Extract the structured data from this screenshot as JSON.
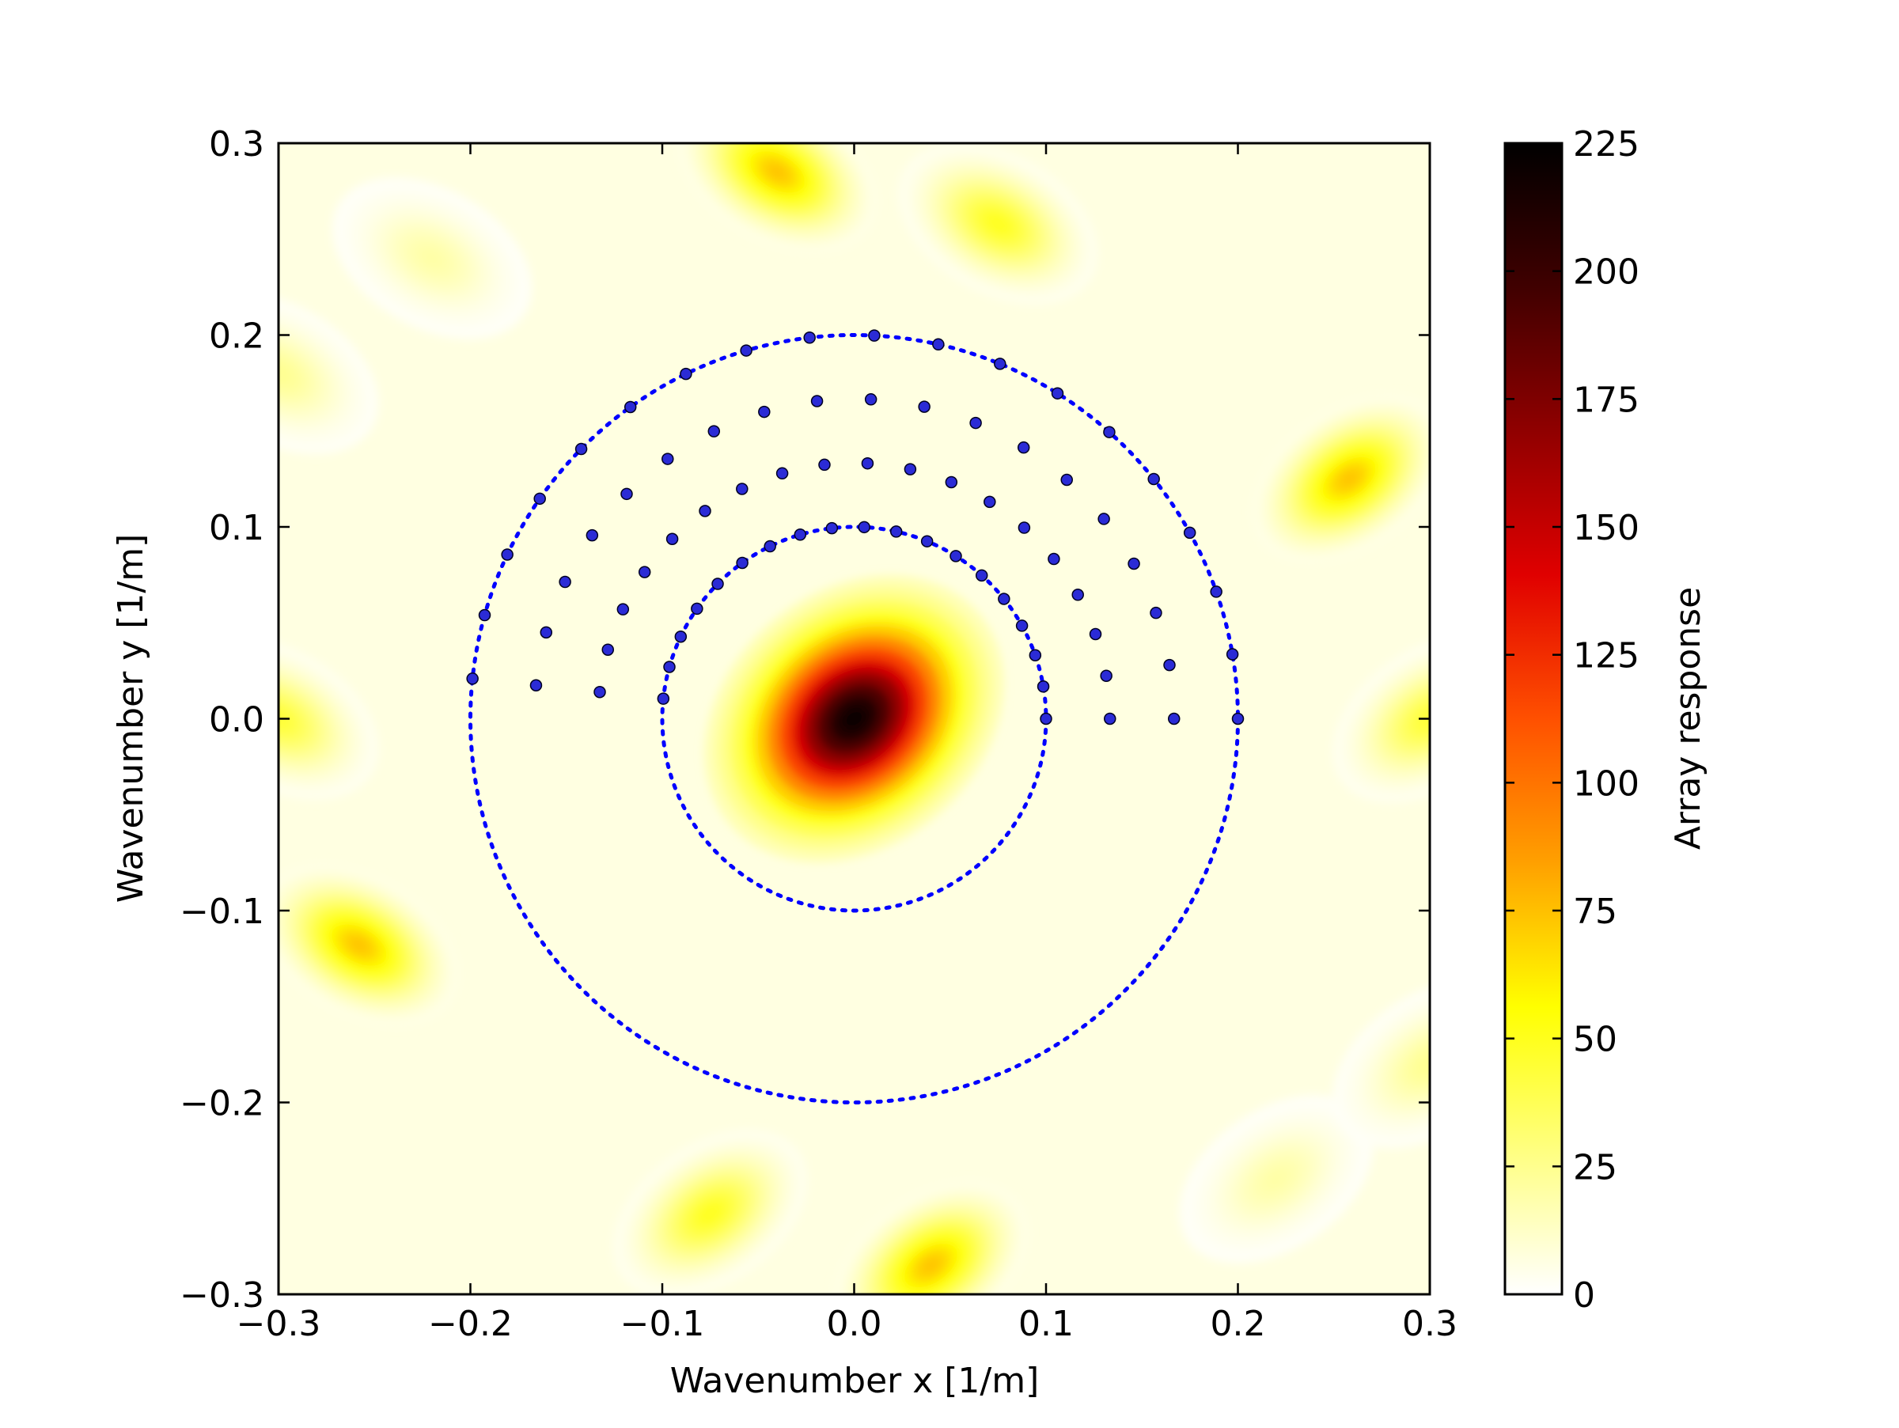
{
  "chart_data": {
    "type": "heatmap",
    "title": "",
    "xlabel": "Wavenumber x [1/m]",
    "ylabel": "Wavenumber y [1/m]",
    "xlim": [
      -0.3,
      0.3
    ],
    "ylim": [
      -0.3,
      0.3
    ],
    "x_ticks": [
      -0.3,
      -0.2,
      -0.1,
      0.0,
      0.1,
      0.2,
      0.3
    ],
    "x_tick_labels": [
      "−0.3",
      "−0.2",
      "−0.1",
      "0.0",
      "0.1",
      "0.2",
      "0.3"
    ],
    "y_ticks": [
      0.3,
      0.2,
      0.1,
      0.0,
      -0.1,
      -0.2,
      -0.3
    ],
    "y_tick_labels": [
      "0.3",
      "0.2",
      "0.1",
      "0.0",
      "−0.1",
      "−0.2",
      "−0.3"
    ],
    "grid": false,
    "colormap": "hot_r",
    "colorbar": {
      "label": "Array response",
      "range": [
        0,
        225
      ],
      "ticks": [
        225,
        200,
        175,
        150,
        125,
        100,
        75,
        50,
        25,
        0
      ],
      "tick_labels": [
        "225",
        "200",
        "175",
        "150",
        "125",
        "100",
        "75",
        "50",
        "25",
        "0"
      ],
      "stops": [
        "#ffffff",
        "#ffff80",
        "#ffff00",
        "#ffa000",
        "#ff5000",
        "#e00000",
        "#900000",
        "#400000",
        "#000000"
      ]
    },
    "response_peaks": [
      {
        "x": 0.0,
        "y": 0.0,
        "value": 225
      },
      {
        "x": -0.04,
        "y": 0.285,
        "value": 75
      },
      {
        "x": 0.075,
        "y": 0.258,
        "value": 50
      },
      {
        "x": 0.258,
        "y": 0.125,
        "value": 75
      },
      {
        "x": -0.258,
        "y": -0.118,
        "value": 75
      },
      {
        "x": 0.04,
        "y": -0.285,
        "value": 75
      },
      {
        "x": -0.075,
        "y": -0.258,
        "value": 50
      },
      {
        "x": -0.3,
        "y": 0.0,
        "value": 45
      },
      {
        "x": 0.3,
        "y": 0.0,
        "value": 45
      },
      {
        "x": -0.3,
        "y": 0.18,
        "value": 25
      },
      {
        "x": 0.3,
        "y": -0.18,
        "value": 25
      },
      {
        "x": -0.22,
        "y": 0.24,
        "value": 20
      },
      {
        "x": 0.22,
        "y": -0.24,
        "value": 20
      }
    ],
    "series": [
      {
        "type": "circle",
        "style": "dotted",
        "color": "#0000ff",
        "radius": 0.2
      },
      {
        "type": "circle",
        "style": "dotted",
        "color": "#0000ff",
        "radius": 0.1
      },
      {
        "type": "scatter",
        "color": "#0000ff",
        "marker_color": "#2b2bd6",
        "ring_radii": [
          0.1,
          0.1333,
          0.1667,
          0.2
        ],
        "points_per_ring": 19,
        "angle_range_deg": [
          0,
          174
        ]
      }
    ]
  }
}
